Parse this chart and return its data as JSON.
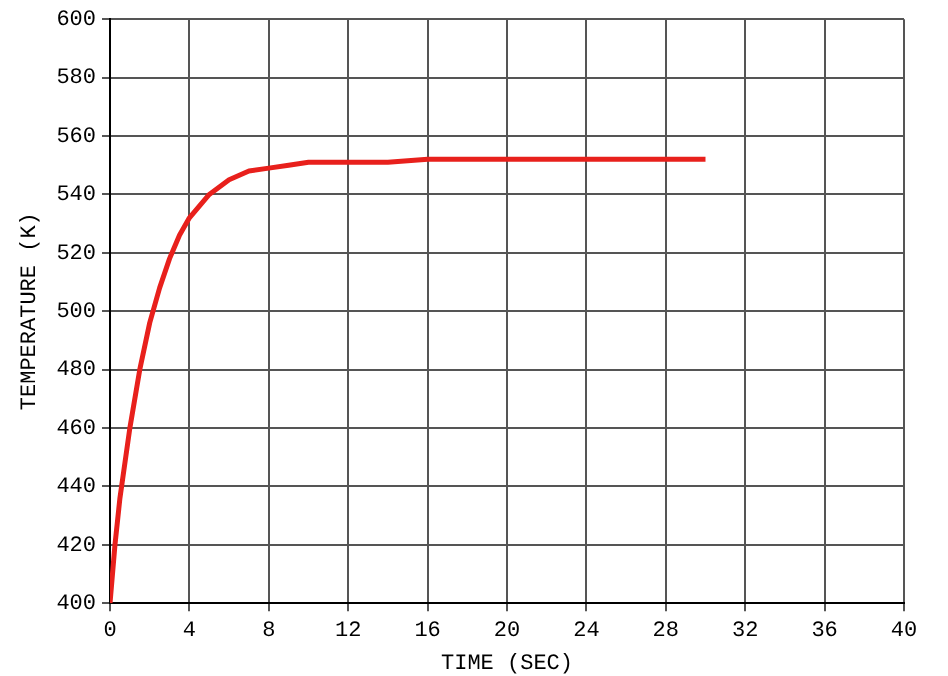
{
  "chart_data": {
    "type": "line",
    "xlabel": "TIME (SEC)",
    "ylabel": "TEMPERATURE (K)",
    "x": [
      0,
      0.25,
      0.5,
      1,
      1.5,
      2,
      2.5,
      3,
      3.5,
      4,
      5,
      6,
      7,
      8,
      9,
      10,
      12,
      14,
      16,
      20,
      24,
      30
    ],
    "series": [
      {
        "color": "#e8201c",
        "values": [
          400,
          420,
          436,
          460,
          480,
          496,
          508,
          518,
          526,
          532,
          540,
          545,
          548,
          549,
          550,
          551,
          551,
          551,
          552,
          552,
          552,
          552
        ]
      }
    ],
    "xlim": [
      0,
      40
    ],
    "xticks": [
      0,
      4,
      8,
      12,
      16,
      20,
      24,
      28,
      32,
      36,
      40
    ],
    "ylim": [
      400,
      600
    ],
    "yticks": [
      400,
      420,
      440,
      460,
      480,
      500,
      520,
      540,
      560,
      580,
      600
    ],
    "grid": true,
    "legend": false,
    "marker": "none",
    "line_style": "solid"
  }
}
